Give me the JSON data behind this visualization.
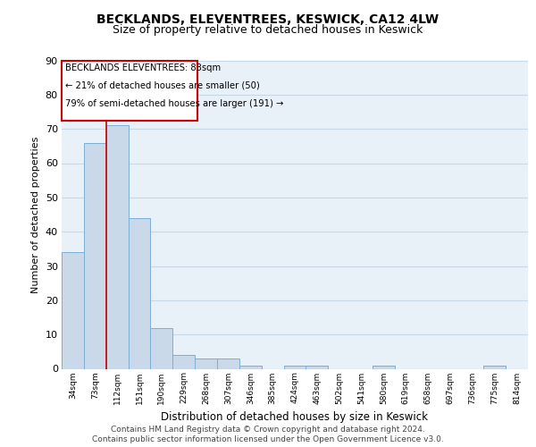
{
  "title": "BECKLANDS, ELEVENTREES, KESWICK, CA12 4LW",
  "subtitle": "Size of property relative to detached houses in Keswick",
  "xlabel": "Distribution of detached houses by size in Keswick",
  "ylabel": "Number of detached properties",
  "categories": [
    "34sqm",
    "73sqm",
    "112sqm",
    "151sqm",
    "190sqm",
    "229sqm",
    "268sqm",
    "307sqm",
    "346sqm",
    "385sqm",
    "424sqm",
    "463sqm",
    "502sqm",
    "541sqm",
    "580sqm",
    "619sqm",
    "658sqm",
    "697sqm",
    "736sqm",
    "775sqm",
    "814sqm"
  ],
  "values": [
    34,
    66,
    71,
    44,
    12,
    4,
    3,
    3,
    1,
    0,
    1,
    1,
    0,
    0,
    1,
    0,
    0,
    0,
    0,
    1,
    0
  ],
  "bar_color": "#c9d9ea",
  "bar_edge_color": "#7bafd4",
  "grid_color": "#c8d8e8",
  "plot_bg_color": "#e8f0f8",
  "ylim": [
    0,
    90
  ],
  "yticks": [
    0,
    10,
    20,
    30,
    40,
    50,
    60,
    70,
    80,
    90
  ],
  "annotation_line1": "BECKLANDS ELEVENTREES: 83sqm",
  "annotation_line2": "← 21% of detached houses are smaller (50)",
  "annotation_line3": "79% of semi-detached houses are larger (191) →",
  "annotation_box_color": "#ffffff",
  "annotation_box_edge": "#cc0000",
  "red_line_x": 1.5,
  "footer_line1": "Contains HM Land Registry data © Crown copyright and database right 2024.",
  "footer_line2": "Contains public sector information licensed under the Open Government Licence v3.0."
}
